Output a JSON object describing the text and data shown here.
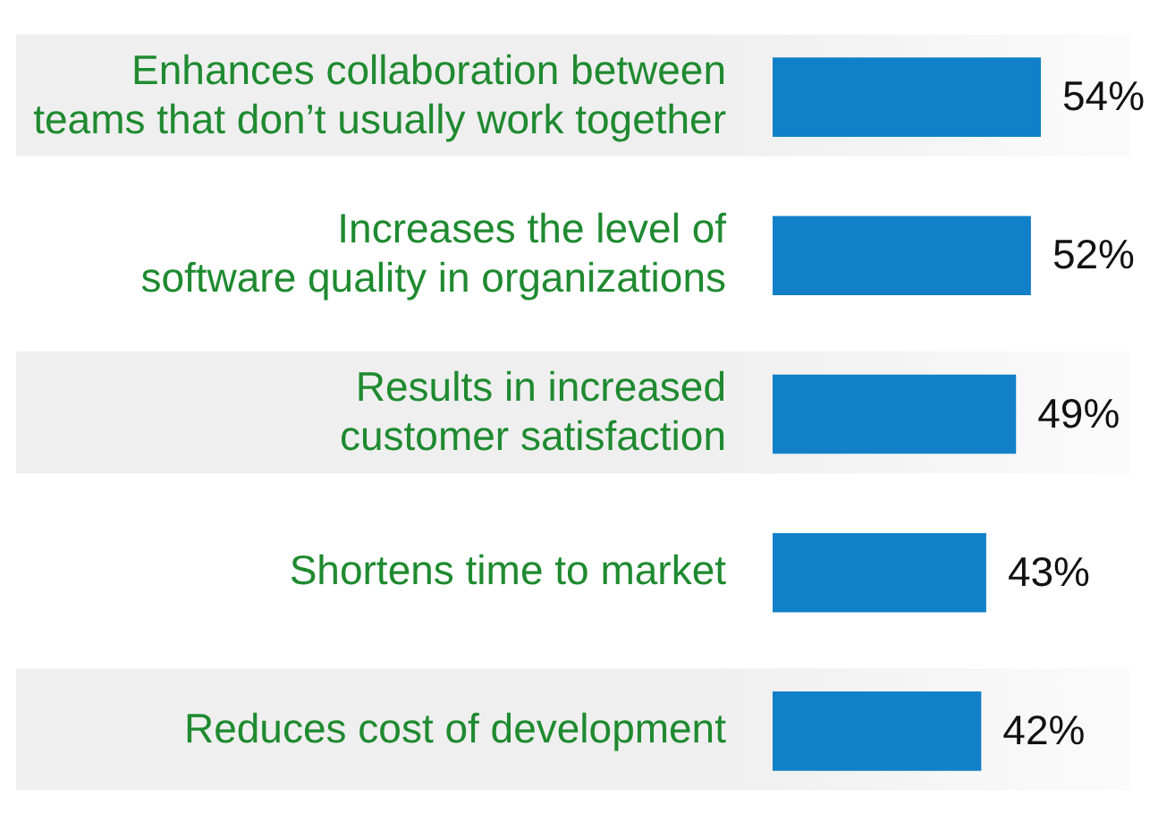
{
  "chart_data": {
    "type": "bar",
    "orientation": "horizontal",
    "categories": [
      "Enhances collaboration between teams that don’t usually work together",
      "Increases the level of software quality in organizations",
      "Results in increased customer satisfaction",
      "Shortens time to market",
      "Reduces cost of development"
    ],
    "values": [
      54,
      52,
      49,
      43,
      42
    ],
    "value_labels": [
      "54%",
      "52%",
      "49%",
      "43%",
      "42%"
    ],
    "color": "#1280c9",
    "bands": [
      {
        "axis": "y",
        "from": "Enhances collaboration between teams that don’t usually work together",
        "to": "Enhances collaboration between teams that don’t usually work together",
        "color": "#efefef"
      },
      {
        "axis": "y",
        "from": "Results in increased customer satisfaction",
        "to": "Results in increased customer satisfaction",
        "color": "#efefef"
      },
      {
        "axis": "y",
        "from": "Reduces cost of development",
        "to": "Reduces cost of development",
        "color": "#efefef"
      }
    ],
    "tick_labels": "y",
    "grid": false,
    "legend": false
  }
}
